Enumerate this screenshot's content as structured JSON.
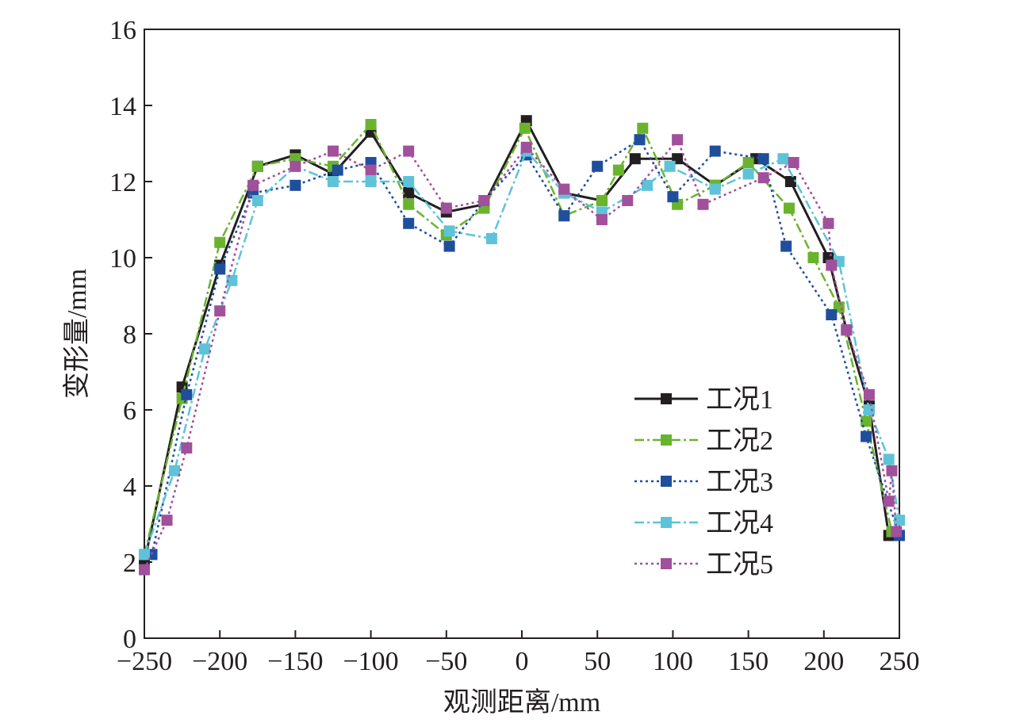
{
  "chart_data": {
    "type": "line",
    "title": "",
    "xlabel": "观测距离/mm",
    "ylabel": "变形量/mm",
    "xlim": [
      -250,
      250
    ],
    "ylim": [
      0,
      16
    ],
    "xticks": [
      -250,
      -200,
      -150,
      -100,
      -50,
      0,
      50,
      100,
      150,
      200,
      250
    ],
    "yticks": [
      0,
      2,
      4,
      6,
      8,
      10,
      12,
      14,
      16
    ],
    "xtick_labels": [
      "−250",
      "−200",
      "−150",
      "−100",
      "−50",
      "0",
      "50",
      "100",
      "150",
      "200",
      "250"
    ],
    "ytick_labels": [
      "0",
      "2",
      "4",
      "6",
      "8",
      "10",
      "12",
      "14",
      "16"
    ],
    "grid": false,
    "legend_position": "bottom-right",
    "series": [
      {
        "name": "工况1",
        "color": "#231f20",
        "line_style": "solid",
        "points": [
          [
            -250,
            2.0
          ],
          [
            -225,
            6.6
          ],
          [
            -200,
            9.8
          ],
          [
            -175,
            12.4
          ],
          [
            -150,
            12.7
          ],
          [
            -125,
            12.2
          ],
          [
            -100,
            13.3
          ],
          [
            -75,
            11.7
          ],
          [
            -50,
            11.2
          ],
          [
            -25,
            11.4
          ],
          [
            3,
            13.6
          ],
          [
            28,
            11.7
          ],
          [
            53,
            11.5
          ],
          [
            75,
            12.6
          ],
          [
            103,
            12.6
          ],
          [
            128,
            11.9
          ],
          [
            155,
            12.6
          ],
          [
            178,
            12.0
          ],
          [
            203,
            10.0
          ],
          [
            215,
            8.1
          ],
          [
            230,
            6.1
          ],
          [
            243,
            2.7
          ],
          [
            250,
            2.7
          ]
        ]
      },
      {
        "name": "工况2",
        "color": "#6ab42d",
        "line_style": "dashdot",
        "points": [
          [
            -250,
            2.2
          ],
          [
            -225,
            6.3
          ],
          [
            -200,
            10.4
          ],
          [
            -175,
            12.4
          ],
          [
            -150,
            12.6
          ],
          [
            -125,
            12.4
          ],
          [
            -100,
            13.5
          ],
          [
            -75,
            11.4
          ],
          [
            -50,
            10.6
          ],
          [
            -25,
            11.3
          ],
          [
            2,
            13.4
          ],
          [
            28,
            11.1
          ],
          [
            53,
            11.5
          ],
          [
            64,
            12.3
          ],
          [
            80,
            13.4
          ],
          [
            103,
            11.4
          ],
          [
            128,
            11.9
          ],
          [
            150,
            12.5
          ],
          [
            177,
            11.3
          ],
          [
            193,
            10.0
          ],
          [
            210,
            8.7
          ],
          [
            228,
            5.7
          ],
          [
            245,
            2.8
          ]
        ]
      },
      {
        "name": "工况3",
        "color": "#1f4e9c",
        "line_style": "dotted",
        "points": [
          [
            -245,
            2.2
          ],
          [
            -222,
            6.4
          ],
          [
            -200,
            9.7
          ],
          [
            -178,
            11.7
          ],
          [
            -150,
            11.9
          ],
          [
            -122,
            12.3
          ],
          [
            -100,
            12.5
          ],
          [
            -75,
            10.9
          ],
          [
            -48,
            10.3
          ],
          [
            -25,
            11.5
          ],
          [
            3,
            12.7
          ],
          [
            28,
            11.1
          ],
          [
            50,
            12.4
          ],
          [
            78,
            13.1
          ],
          [
            100,
            11.6
          ],
          [
            128,
            12.8
          ],
          [
            160,
            12.6
          ],
          [
            175,
            10.3
          ],
          [
            205,
            8.5
          ],
          [
            228,
            5.3
          ],
          [
            250,
            2.7
          ]
        ]
      },
      {
        "name": "工况4",
        "color": "#5ec3d8",
        "line_style": "dashdot",
        "points": [
          [
            -250,
            2.2
          ],
          [
            -230,
            4.4
          ],
          [
            -210,
            7.6
          ],
          [
            -192,
            9.4
          ],
          [
            -175,
            11.5
          ],
          [
            -150,
            12.4
          ],
          [
            -125,
            12.0
          ],
          [
            -100,
            12.0
          ],
          [
            -75,
            12.0
          ],
          [
            -48,
            10.7
          ],
          [
            -20,
            10.5
          ],
          [
            3,
            12.8
          ],
          [
            28,
            11.7
          ],
          [
            53,
            11.2
          ],
          [
            83,
            11.9
          ],
          [
            98,
            12.4
          ],
          [
            128,
            11.8
          ],
          [
            150,
            12.2
          ],
          [
            173,
            12.6
          ],
          [
            210,
            9.9
          ],
          [
            230,
            6.0
          ],
          [
            243,
            4.7
          ],
          [
            250,
            3.1
          ]
        ]
      },
      {
        "name": "工况5",
        "color": "#a1509c",
        "line_style": "dotted",
        "points": [
          [
            -250,
            1.8
          ],
          [
            -235,
            3.1
          ],
          [
            -222,
            5.0
          ],
          [
            -200,
            8.6
          ],
          [
            -178,
            11.9
          ],
          [
            -150,
            12.4
          ],
          [
            -125,
            12.8
          ],
          [
            -100,
            12.3
          ],
          [
            -75,
            12.8
          ],
          [
            -50,
            11.3
          ],
          [
            -25,
            11.5
          ],
          [
            3,
            12.9
          ],
          [
            28,
            11.8
          ],
          [
            53,
            11.0
          ],
          [
            70,
            11.5
          ],
          [
            103,
            13.1
          ],
          [
            120,
            11.4
          ],
          [
            160,
            12.1
          ],
          [
            180,
            12.5
          ],
          [
            203,
            10.9
          ],
          [
            205,
            9.8
          ],
          [
            215,
            8.1
          ],
          [
            230,
            6.4
          ],
          [
            243,
            3.6
          ],
          [
            245,
            4.4
          ],
          [
            248,
            2.8
          ]
        ]
      }
    ]
  }
}
